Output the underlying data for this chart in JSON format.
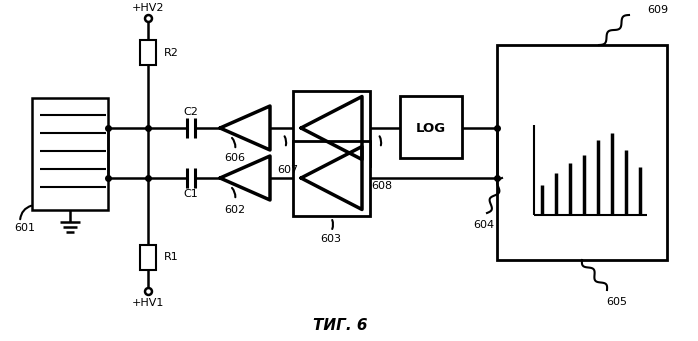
{
  "title": "ΤИГ. 6",
  "background_color": "#ffffff",
  "line_color": "#000000",
  "label_601": "601",
  "label_602": "602",
  "label_603": "603",
  "label_604": "604",
  "label_605": "605",
  "label_606": "606",
  "label_607": "607",
  "label_608": "608",
  "label_609": "609",
  "label_hv1": "+HV1",
  "label_hv2": "+HV2",
  "label_R1": "R1",
  "label_R2": "R2",
  "label_C1": "C1",
  "label_C2": "C2",
  "label_LOG": "LOG",
  "fig_title": "ΤИГ. 6"
}
